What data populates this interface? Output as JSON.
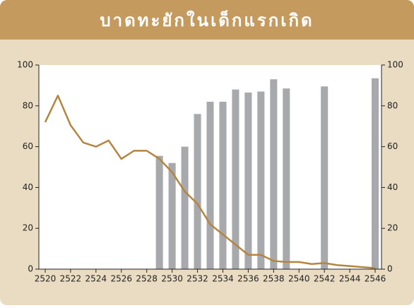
{
  "chart_data": {
    "type": "bar",
    "title": "บาดทะยักในเด็กแรกเกิด",
    "x": [
      2520,
      2521,
      2522,
      2523,
      2524,
      2525,
      2526,
      2527,
      2528,
      2529,
      2530,
      2531,
      2532,
      2533,
      2534,
      2535,
      2536,
      2537,
      2538,
      2539,
      2540,
      2541,
      2542,
      2543,
      2544,
      2545,
      2546
    ],
    "xlim": [
      2519.5,
      2546.5
    ],
    "xticks": [
      2520,
      2522,
      2524,
      2526,
      2528,
      2530,
      2532,
      2534,
      2536,
      2538,
      2540,
      2542,
      2544,
      2546
    ],
    "ylim": [
      0,
      100
    ],
    "yticks": [
      0,
      20,
      40,
      60,
      80,
      100
    ],
    "y2lim": [
      0,
      100
    ],
    "y2ticks": [
      0,
      20,
      40,
      60,
      80,
      100
    ],
    "series": [
      {
        "type": "bar",
        "color": "#a7a9ac",
        "values": [
          null,
          null,
          null,
          null,
          null,
          null,
          null,
          null,
          null,
          55.5,
          52,
          60,
          76,
          82,
          82,
          88,
          86.5,
          87,
          93,
          88.5,
          null,
          null,
          89.5,
          null,
          null,
          null,
          93.5
        ]
      },
      {
        "type": "line",
        "axis": "y2",
        "color": "#b5853f",
        "values": [
          72,
          85,
          70.5,
          62,
          60,
          63,
          54,
          58,
          58,
          54,
          47.5,
          38,
          32,
          22,
          17,
          12,
          7,
          7,
          4,
          3.5,
          3.5,
          2.5,
          3,
          2,
          1.5,
          1,
          0.5
        ]
      }
    ]
  }
}
